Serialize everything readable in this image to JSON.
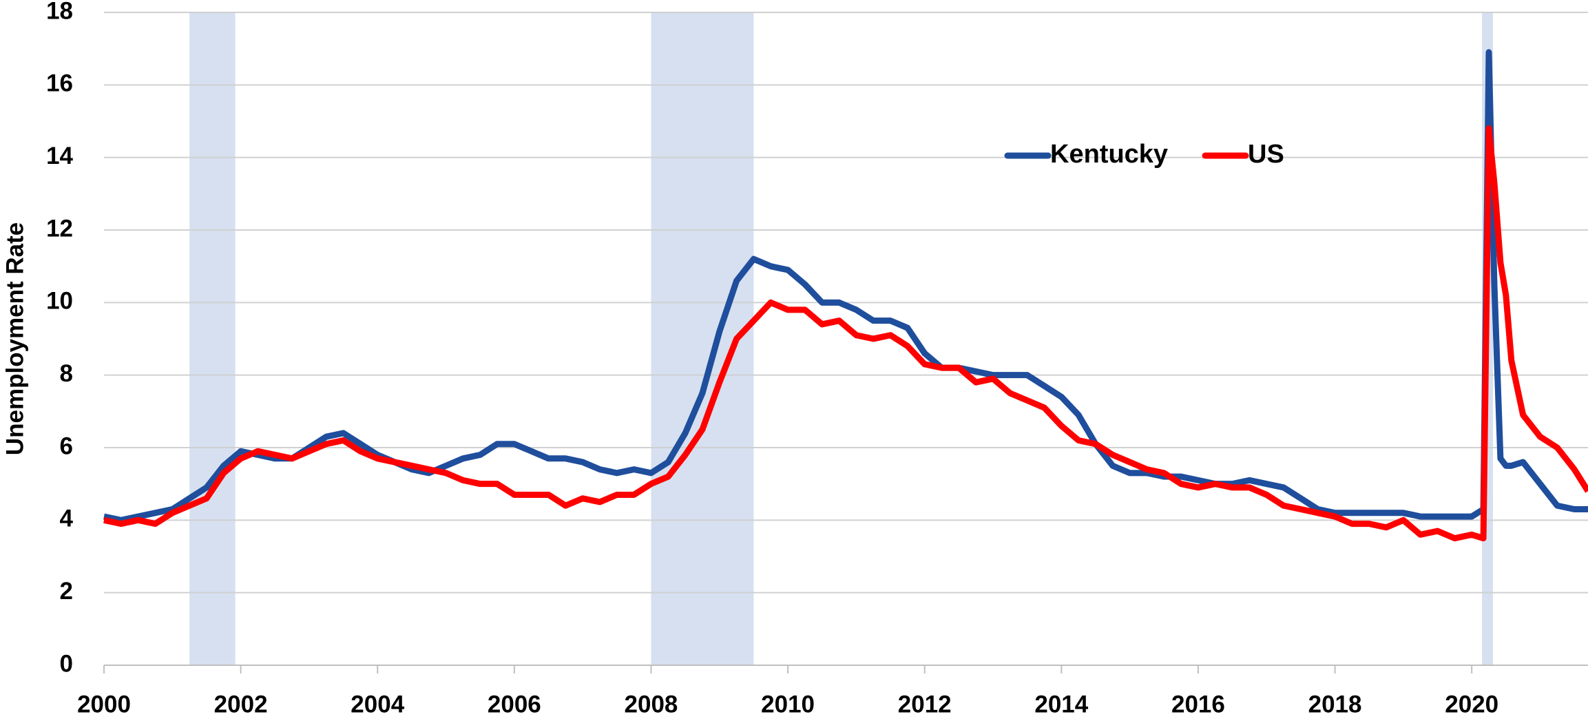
{
  "chart_data": {
    "type": "line",
    "y_axis_label": "Unemployment Rate",
    "x": [
      2000,
      2000.25,
      2000.5,
      2000.75,
      2001,
      2001.25,
      2001.5,
      2001.75,
      2002,
      2002.25,
      2002.5,
      2002.75,
      2003,
      2003.25,
      2003.5,
      2003.75,
      2004,
      2004.25,
      2004.5,
      2004.75,
      2005,
      2005.25,
      2005.5,
      2005.75,
      2006,
      2006.25,
      2006.5,
      2006.75,
      2007,
      2007.25,
      2007.5,
      2007.75,
      2008,
      2008.25,
      2008.5,
      2008.75,
      2009,
      2009.25,
      2009.5,
      2009.75,
      2010,
      2010.25,
      2010.5,
      2010.75,
      2011,
      2011.25,
      2011.5,
      2011.75,
      2012,
      2012.25,
      2012.5,
      2012.75,
      2013,
      2013.25,
      2013.5,
      2013.75,
      2014,
      2014.25,
      2014.5,
      2014.75,
      2015,
      2015.25,
      2015.5,
      2015.75,
      2016,
      2016.25,
      2016.5,
      2016.75,
      2017,
      2017.25,
      2017.5,
      2017.75,
      2018,
      2018.25,
      2018.5,
      2018.75,
      2019,
      2019.25,
      2019.5,
      2019.75,
      2020,
      2020.17,
      2020.25,
      2020.33,
      2020.42,
      2020.5,
      2020.58,
      2020.75,
      2021,
      2021.25,
      2021.5,
      2021.7
    ],
    "series": [
      {
        "name": "Kentucky",
        "color": "#1f4e9c",
        "values": [
          4.1,
          4.0,
          4.1,
          4.2,
          4.3,
          4.6,
          4.9,
          5.5,
          5.9,
          5.8,
          5.7,
          5.7,
          6.0,
          6.3,
          6.4,
          6.1,
          5.8,
          5.6,
          5.4,
          5.3,
          5.5,
          5.7,
          5.8,
          6.1,
          6.1,
          5.9,
          5.7,
          5.7,
          5.6,
          5.4,
          5.3,
          5.4,
          5.3,
          5.6,
          6.4,
          7.5,
          9.2,
          10.6,
          11.2,
          11.0,
          10.9,
          10.5,
          10.0,
          10.0,
          9.8,
          9.5,
          9.5,
          9.3,
          8.6,
          8.2,
          8.2,
          8.1,
          8.0,
          8.0,
          8.0,
          7.7,
          7.4,
          6.9,
          6.1,
          5.5,
          5.3,
          5.3,
          5.2,
          5.2,
          5.1,
          5.0,
          5.0,
          5.1,
          5.0,
          4.9,
          4.6,
          4.3,
          4.2,
          4.2,
          4.2,
          4.2,
          4.2,
          4.1,
          4.1,
          4.1,
          4.1,
          4.3,
          16.9,
          10.5,
          5.7,
          5.5,
          5.5,
          5.6,
          5.0,
          4.4,
          4.3,
          4.3
        ]
      },
      {
        "name": "US",
        "color": "#ff0000",
        "values": [
          4.0,
          3.9,
          4.0,
          3.9,
          4.2,
          4.4,
          4.6,
          5.3,
          5.7,
          5.9,
          5.8,
          5.7,
          5.9,
          6.1,
          6.2,
          5.9,
          5.7,
          5.6,
          5.5,
          5.4,
          5.3,
          5.1,
          5.0,
          5.0,
          4.7,
          4.7,
          4.7,
          4.4,
          4.6,
          4.5,
          4.7,
          4.7,
          5.0,
          5.2,
          5.8,
          6.5,
          7.8,
          9.0,
          9.5,
          10.0,
          9.8,
          9.8,
          9.4,
          9.5,
          9.1,
          9.0,
          9.1,
          8.8,
          8.3,
          8.2,
          8.2,
          7.8,
          7.9,
          7.5,
          7.3,
          7.1,
          6.6,
          6.2,
          6.1,
          5.8,
          5.6,
          5.4,
          5.3,
          5.0,
          4.9,
          5.0,
          4.9,
          4.9,
          4.7,
          4.4,
          4.3,
          4.2,
          4.1,
          3.9,
          3.9,
          3.8,
          4.0,
          3.6,
          3.7,
          3.5,
          3.6,
          3.5,
          14.8,
          13.3,
          11.1,
          10.2,
          8.4,
          6.9,
          6.3,
          6.0,
          5.4,
          4.8
        ]
      }
    ],
    "shaded_periods": [
      [
        2001.25,
        2001.92
      ],
      [
        2008.0,
        2009.5
      ],
      [
        2020.15,
        2020.31
      ]
    ],
    "shade_color": "#d6e0f0",
    "xlim": [
      2000,
      2021.7
    ],
    "xticks": [
      2000,
      2002,
      2004,
      2006,
      2008,
      2010,
      2012,
      2014,
      2016,
      2018,
      2020
    ],
    "ylim": [
      0,
      18
    ],
    "yticks": [
      0,
      2,
      4,
      6,
      8,
      10,
      12,
      14,
      16,
      18
    ],
    "grid": true,
    "legend": "top"
  }
}
